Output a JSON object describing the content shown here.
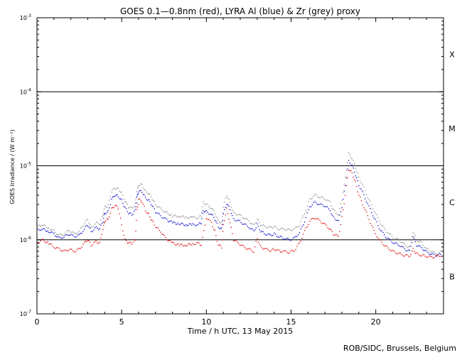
{
  "chart_data": {
    "type": "scatter",
    "title": "GOES 0.1—0.8nm (red), LYRA Al (blue) & Zr (grey) proxy",
    "xlabel": "Time / h UTC, 13 May 2015",
    "ylabel": "GOES Irradiance / (W m⁻²)",
    "xlim": [
      0,
      24
    ],
    "ylim": [
      1e-07,
      0.001
    ],
    "y_scale": "log",
    "x_ticks": [
      0,
      5,
      10,
      15,
      20
    ],
    "x_tick_labels": [
      "0",
      "5",
      "10",
      "15",
      "20"
    ],
    "y_ticks": [
      1e-07,
      1e-06,
      1e-05,
      0.0001,
      0.001
    ],
    "y_tick_labels": [
      {
        "base": "10",
        "exp": "-7"
      },
      {
        "base": "10",
        "exp": "-6"
      },
      {
        "base": "10",
        "exp": "-5"
      },
      {
        "base": "10",
        "exp": "-4"
      },
      {
        "base": "10",
        "exp": "-3"
      }
    ],
    "reference_lines": [
      1e-06,
      1e-05,
      0.0001
    ],
    "flare_classes": [
      {
        "label": "X",
        "y": 0.00032
      },
      {
        "label": "M",
        "y": 3.2e-05
      },
      {
        "label": "C",
        "y": 3.2e-06
      },
      {
        "label": "B",
        "y": 3.2e-07
      }
    ],
    "series": [
      {
        "name": "Zr (grey)",
        "color": "#8c8c8c",
        "points": [
          [
            0.0,
            1.5e-06
          ],
          [
            0.3,
            1.6e-06
          ],
          [
            0.7,
            1.45e-06
          ],
          [
            1.0,
            1.3e-06
          ],
          [
            1.3,
            1.15e-06
          ],
          [
            1.6,
            1.2e-06
          ],
          [
            1.9,
            1.35e-06
          ],
          [
            2.2,
            1.2e-06
          ],
          [
            2.5,
            1.3e-06
          ],
          [
            2.8,
            1.7e-06
          ],
          [
            3.0,
            1.9e-06
          ],
          [
            3.2,
            1.45e-06
          ],
          [
            3.5,
            1.7e-06
          ],
          [
            3.7,
            1.65e-06
          ],
          [
            3.9,
            2.2e-06
          ],
          [
            4.0,
            2.8e-06
          ],
          [
            4.2,
            2.9e-06
          ],
          [
            4.4,
            4.5e-06
          ],
          [
            4.6,
            5e-06
          ],
          [
            4.8,
            4.9e-06
          ],
          [
            5.0,
            4.3e-06
          ],
          [
            5.2,
            3.3e-06
          ],
          [
            5.4,
            2.8e-06
          ],
          [
            5.6,
            2.7e-06
          ],
          [
            5.8,
            3e-06
          ],
          [
            5.9,
            4.5e-06
          ],
          [
            6.0,
            5.5e-06
          ],
          [
            6.2,
            5.6e-06
          ],
          [
            6.4,
            4.5e-06
          ],
          [
            6.6,
            4.2e-06
          ],
          [
            6.8,
            3.6e-06
          ],
          [
            7.0,
            3e-06
          ],
          [
            7.3,
            2.6e-06
          ],
          [
            7.6,
            2.35e-06
          ],
          [
            8.0,
            2.1e-06
          ],
          [
            8.4,
            2.1e-06
          ],
          [
            8.8,
            2e-06
          ],
          [
            9.2,
            2e-06
          ],
          [
            9.5,
            2e-06
          ],
          [
            9.7,
            2.1e-06
          ],
          [
            9.8,
            3.2e-06
          ],
          [
            10.0,
            3e-06
          ],
          [
            10.3,
            2.7e-06
          ],
          [
            10.5,
            2.3e-06
          ],
          [
            10.7,
            1.8e-06
          ],
          [
            10.9,
            1.7e-06
          ],
          [
            11.0,
            2.8e-06
          ],
          [
            11.2,
            4e-06
          ],
          [
            11.4,
            3.2e-06
          ],
          [
            11.6,
            2.3e-06
          ],
          [
            11.9,
            2.2e-06
          ],
          [
            12.2,
            2e-06
          ],
          [
            12.5,
            1.8e-06
          ],
          [
            12.8,
            1.55e-06
          ],
          [
            13.0,
            1.9e-06
          ],
          [
            13.2,
            1.6e-06
          ],
          [
            13.5,
            1.5e-06
          ],
          [
            13.8,
            1.45e-06
          ],
          [
            14.0,
            1.5e-06
          ],
          [
            14.3,
            1.4e-06
          ],
          [
            14.6,
            1.4e-06
          ],
          [
            14.9,
            1.35e-06
          ],
          [
            15.2,
            1.4e-06
          ],
          [
            15.5,
            1.6e-06
          ],
          [
            15.8,
            2.3e-06
          ],
          [
            16.1,
            3.5e-06
          ],
          [
            16.4,
            4e-06
          ],
          [
            16.7,
            3.8e-06
          ],
          [
            17.0,
            3.6e-06
          ],
          [
            17.3,
            3.2e-06
          ],
          [
            17.5,
            2.5e-06
          ],
          [
            17.8,
            2.2e-06
          ],
          [
            18.0,
            3.5e-06
          ],
          [
            18.2,
            7e-06
          ],
          [
            18.4,
            1.45e-05
          ],
          [
            18.6,
            1.25e-05
          ],
          [
            18.8,
            9.5e-06
          ],
          [
            19.0,
            7e-06
          ],
          [
            19.3,
            5e-06
          ],
          [
            19.6,
            3.5e-06
          ],
          [
            19.9,
            2.5e-06
          ],
          [
            20.2,
            1.8e-06
          ],
          [
            20.5,
            1.4e-06
          ],
          [
            20.8,
            1.2e-06
          ],
          [
            21.1,
            1.05e-06
          ],
          [
            21.4,
            1e-06
          ],
          [
            21.7,
            8.5e-07
          ],
          [
            22.0,
            8e-07
          ],
          [
            22.2,
            1.3e-06
          ],
          [
            22.4,
            1e-06
          ],
          [
            22.7,
            9e-07
          ],
          [
            23.0,
            7.5e-07
          ],
          [
            23.3,
            7e-07
          ],
          [
            23.6,
            6.5e-07
          ],
          [
            23.9,
            6.8e-07
          ]
        ]
      },
      {
        "name": "LYRA Al (blue)",
        "color": "#0000cc",
        "points": [
          [
            0.0,
            1.35e-06
          ],
          [
            0.3,
            1.4e-06
          ],
          [
            0.7,
            1.3e-06
          ],
          [
            1.0,
            1.2e-06
          ],
          [
            1.3,
            1.05e-06
          ],
          [
            1.6,
            1.1e-06
          ],
          [
            1.9,
            1.2e-06
          ],
          [
            2.2,
            1.1e-06
          ],
          [
            2.5,
            1.15e-06
          ],
          [
            2.8,
            1.4e-06
          ],
          [
            3.0,
            1.6e-06
          ],
          [
            3.2,
            1.3e-06
          ],
          [
            3.5,
            1.45e-06
          ],
          [
            3.7,
            1.4e-06
          ],
          [
            3.9,
            1.8e-06
          ],
          [
            4.0,
            2.3e-06
          ],
          [
            4.2,
            2.4e-06
          ],
          [
            4.4,
            3.5e-06
          ],
          [
            4.6,
            4e-06
          ],
          [
            4.8,
            3.9e-06
          ],
          [
            5.0,
            3.4e-06
          ],
          [
            5.2,
            2.7e-06
          ],
          [
            5.4,
            2.3e-06
          ],
          [
            5.6,
            2.2e-06
          ],
          [
            5.8,
            2.5e-06
          ],
          [
            5.9,
            3.7e-06
          ],
          [
            6.0,
            4.5e-06
          ],
          [
            6.2,
            4.5e-06
          ],
          [
            6.4,
            3.7e-06
          ],
          [
            6.6,
            3.4e-06
          ],
          [
            6.8,
            2.9e-06
          ],
          [
            7.0,
            2.4e-06
          ],
          [
            7.3,
            2.1e-06
          ],
          [
            7.6,
            1.9e-06
          ],
          [
            8.0,
            1.7e-06
          ],
          [
            8.4,
            1.65e-06
          ],
          [
            8.8,
            1.6e-06
          ],
          [
            9.2,
            1.6e-06
          ],
          [
            9.5,
            1.6e-06
          ],
          [
            9.7,
            1.7e-06
          ],
          [
            9.8,
            2.5e-06
          ],
          [
            10.0,
            2.4e-06
          ],
          [
            10.3,
            2.2e-06
          ],
          [
            10.5,
            1.9e-06
          ],
          [
            10.7,
            1.5e-06
          ],
          [
            10.9,
            1.4e-06
          ],
          [
            11.0,
            2.2e-06
          ],
          [
            11.2,
            3.1e-06
          ],
          [
            11.4,
            2.6e-06
          ],
          [
            11.6,
            1.9e-06
          ],
          [
            11.9,
            1.8e-06
          ],
          [
            12.2,
            1.65e-06
          ],
          [
            12.5,
            1.5e-06
          ],
          [
            12.8,
            1.3e-06
          ],
          [
            13.0,
            1.6e-06
          ],
          [
            13.2,
            1.3e-06
          ],
          [
            13.5,
            1.2e-06
          ],
          [
            13.8,
            1.15e-06
          ],
          [
            14.0,
            1.2e-06
          ],
          [
            14.3,
            1.1e-06
          ],
          [
            14.6,
            1.05e-06
          ],
          [
            14.9,
            1e-06
          ],
          [
            15.2,
            1.05e-06
          ],
          [
            15.5,
            1.25e-06
          ],
          [
            15.8,
            1.8e-06
          ],
          [
            16.1,
            2.8e-06
          ],
          [
            16.4,
            3.2e-06
          ],
          [
            16.7,
            3e-06
          ],
          [
            17.0,
            2.9e-06
          ],
          [
            17.3,
            2.5e-06
          ],
          [
            17.5,
            2e-06
          ],
          [
            17.8,
            1.8e-06
          ],
          [
            18.0,
            2.8e-06
          ],
          [
            18.2,
            5.5e-06
          ],
          [
            18.4,
            1.15e-05
          ],
          [
            18.6,
            1e-05
          ],
          [
            18.8,
            7.5e-06
          ],
          [
            19.0,
            5.5e-06
          ],
          [
            19.3,
            4e-06
          ],
          [
            19.6,
            2.8e-06
          ],
          [
            19.9,
            2e-06
          ],
          [
            20.2,
            1.45e-06
          ],
          [
            20.5,
            1.15e-06
          ],
          [
            20.8,
            1e-06
          ],
          [
            21.1,
            9e-07
          ],
          [
            21.4,
            8.5e-07
          ],
          [
            21.7,
            7.5e-07
          ],
          [
            22.0,
            7e-07
          ],
          [
            22.2,
            1.1e-06
          ],
          [
            22.4,
            8.5e-07
          ],
          [
            22.7,
            7.8e-07
          ],
          [
            23.0,
            6.8e-07
          ],
          [
            23.3,
            6.4e-07
          ],
          [
            23.6,
            6.2e-07
          ],
          [
            23.9,
            6.3e-07
          ]
        ]
      },
      {
        "name": "GOES 0.1—0.8nm (red)",
        "color": "#dd0000",
        "points": [
          [
            0.0,
            9e-07
          ],
          [
            0.3,
            1e-06
          ],
          [
            0.7,
            9e-07
          ],
          [
            1.0,
            8e-07
          ],
          [
            1.3,
            7.5e-07
          ],
          [
            1.6,
            7e-07
          ],
          [
            1.9,
            7.5e-07
          ],
          [
            2.2,
            7e-07
          ],
          [
            2.5,
            7.5e-07
          ],
          [
            2.8,
            9e-07
          ],
          [
            3.0,
            1e-06
          ],
          [
            3.2,
            8.5e-07
          ],
          [
            3.5,
            9.5e-07
          ],
          [
            3.7,
            9e-07
          ],
          [
            3.9,
            1.4e-06
          ],
          [
            4.0,
            1.8e-06
          ],
          [
            4.2,
            1.9e-06
          ],
          [
            4.4,
            2.6e-06
          ],
          [
            4.6,
            2.9e-06
          ],
          [
            4.8,
            2.7e-06
          ],
          [
            5.0,
            1.6e-06
          ],
          [
            5.2,
            1e-06
          ],
          [
            5.4,
            9e-07
          ],
          [
            5.6,
            9e-07
          ],
          [
            5.8,
            1e-06
          ],
          [
            5.9,
            2.5e-06
          ],
          [
            6.0,
            3.5e-06
          ],
          [
            6.2,
            3.3e-06
          ],
          [
            6.4,
            2.5e-06
          ],
          [
            6.6,
            2.2e-06
          ],
          [
            6.8,
            1.8e-06
          ],
          [
            7.0,
            1.5e-06
          ],
          [
            7.3,
            1.3e-06
          ],
          [
            7.6,
            1.05e-06
          ],
          [
            8.0,
            9e-07
          ],
          [
            8.4,
            8.5e-07
          ],
          [
            8.8,
            8.5e-07
          ],
          [
            9.2,
            8.8e-07
          ],
          [
            9.5,
            9e-07
          ],
          [
            9.7,
            8.5e-07
          ],
          [
            10.0,
            2e-06
          ],
          [
            10.3,
            1.7e-06
          ],
          [
            10.5,
            1.3e-06
          ],
          [
            10.7,
            8.5e-07
          ],
          [
            10.9,
            8e-07
          ],
          [
            11.0,
            1.6e-06
          ],
          [
            11.2,
            2.6e-06
          ],
          [
            11.4,
            1.7e-06
          ],
          [
            11.6,
            1e-06
          ],
          [
            11.9,
            9e-07
          ],
          [
            12.2,
            8e-07
          ],
          [
            12.5,
            7.5e-07
          ],
          [
            12.8,
            7e-07
          ],
          [
            13.0,
            1.05e-06
          ],
          [
            13.2,
            8e-07
          ],
          [
            13.5,
            7.5e-07
          ],
          [
            13.8,
            7.2e-07
          ],
          [
            14.0,
            7.5e-07
          ],
          [
            14.3,
            7e-07
          ],
          [
            14.6,
            7e-07
          ],
          [
            14.9,
            6.8e-07
          ],
          [
            15.2,
            7.2e-07
          ],
          [
            15.5,
            9e-07
          ],
          [
            15.8,
            1.3e-06
          ],
          [
            16.1,
            1.8e-06
          ],
          [
            16.4,
            2e-06
          ],
          [
            16.7,
            1.8e-06
          ],
          [
            17.0,
            1.6e-06
          ],
          [
            17.3,
            1.4e-06
          ],
          [
            17.5,
            1.2e-06
          ],
          [
            17.8,
            1.1e-06
          ],
          [
            18.0,
            2e-06
          ],
          [
            18.2,
            4e-06
          ],
          [
            18.4,
            9e-06
          ],
          [
            18.6,
            8e-06
          ],
          [
            18.8,
            6e-06
          ],
          [
            19.0,
            4e-06
          ],
          [
            19.3,
            2.8e-06
          ],
          [
            19.6,
            1.9e-06
          ],
          [
            19.9,
            1.3e-06
          ],
          [
            20.2,
            1e-06
          ],
          [
            20.5,
            8.5e-07
          ],
          [
            20.8,
            7.5e-07
          ],
          [
            21.1,
            6.8e-07
          ],
          [
            21.4,
            6.5e-07
          ],
          [
            21.7,
            6.2e-07
          ],
          [
            22.0,
            6e-07
          ],
          [
            22.2,
            7.5e-07
          ],
          [
            22.4,
            6.5e-07
          ],
          [
            22.7,
            6.2e-07
          ],
          [
            23.0,
            6e-07
          ],
          [
            23.3,
            5.8e-07
          ],
          [
            23.6,
            6e-07
          ],
          [
            23.9,
            6.2e-07
          ]
        ]
      }
    ]
  },
  "footer": {
    "credit": "ROB/SIDC, Brussels, Belgium"
  }
}
